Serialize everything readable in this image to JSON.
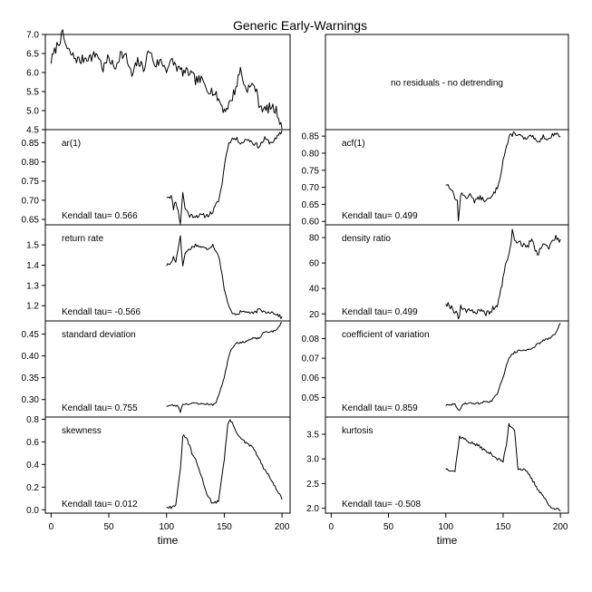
{
  "title": "Generic Early-Warnings",
  "chart_data": [
    {
      "type": "line",
      "id": "data",
      "col": 0,
      "row": 0,
      "label": "",
      "kendall": "",
      "xlim": [
        -5,
        207
      ],
      "ylim": [
        4.5,
        7.0
      ],
      "yticks": [
        "4.5",
        "5.0",
        "5.5",
        "6.0",
        "6.5",
        "7.0"
      ],
      "anchors": [
        [
          0,
          6.3
        ],
        [
          5,
          6.7
        ],
        [
          10,
          7.0
        ],
        [
          14,
          6.6
        ],
        [
          20,
          6.4
        ],
        [
          25,
          6.3
        ],
        [
          30,
          6.4
        ],
        [
          35,
          6.4
        ],
        [
          40,
          6.5
        ],
        [
          45,
          6.1
        ],
        [
          50,
          6.4
        ],
        [
          55,
          6.1
        ],
        [
          60,
          6.5
        ],
        [
          65,
          6.4
        ],
        [
          70,
          5.9
        ],
        [
          75,
          6.3
        ],
        [
          80,
          6.1
        ],
        [
          85,
          6.6
        ],
        [
          90,
          6.2
        ],
        [
          95,
          6.3
        ],
        [
          100,
          6.1
        ],
        [
          105,
          6.3
        ],
        [
          110,
          6.1
        ],
        [
          115,
          6.0
        ],
        [
          120,
          6.0
        ],
        [
          125,
          5.8
        ],
        [
          130,
          5.8
        ],
        [
          135,
          5.6
        ],
        [
          140,
          5.5
        ],
        [
          145,
          5.3
        ],
        [
          150,
          5.0
        ],
        [
          155,
          5.2
        ],
        [
          160,
          5.6
        ],
        [
          164,
          6.1
        ],
        [
          168,
          5.6
        ],
        [
          172,
          5.6
        ],
        [
          176,
          5.7
        ],
        [
          180,
          5.2
        ],
        [
          185,
          5.0
        ],
        [
          190,
          5.1
        ],
        [
          195,
          5.0
        ],
        [
          200,
          4.6
        ]
      ],
      "noise": 0.13,
      "seed": 7,
      "note": ""
    },
    {
      "type": "empty",
      "id": "resid",
      "col": 1,
      "row": 0,
      "note": "no residuals - no detrending"
    },
    {
      "type": "line",
      "id": "ar1",
      "col": 0,
      "row": 1,
      "label": "ar(1)",
      "kendall": "Kendall tau= 0.566",
      "xlim": [
        -5,
        207
      ],
      "ylim": [
        0.636,
        0.884
      ],
      "yticks": [
        "0.65",
        "0.70",
        "0.75",
        "0.80",
        "0.85"
      ],
      "anchors": [
        [
          100,
          0.71
        ],
        [
          104,
          0.71
        ],
        [
          106,
          0.68
        ],
        [
          108,
          0.7
        ],
        [
          110,
          0.67
        ],
        [
          112,
          0.64
        ],
        [
          114,
          0.72
        ],
        [
          116,
          0.68
        ],
        [
          120,
          0.66
        ],
        [
          125,
          0.66
        ],
        [
          130,
          0.66
        ],
        [
          135,
          0.66
        ],
        [
          140,
          0.67
        ],
        [
          145,
          0.7
        ],
        [
          148,
          0.74
        ],
        [
          150,
          0.79
        ],
        [
          153,
          0.84
        ],
        [
          156,
          0.86
        ],
        [
          160,
          0.86
        ],
        [
          165,
          0.85
        ],
        [
          170,
          0.86
        ],
        [
          175,
          0.85
        ],
        [
          180,
          0.84
        ],
        [
          185,
          0.86
        ],
        [
          190,
          0.85
        ],
        [
          195,
          0.86
        ],
        [
          200,
          0.88
        ]
      ],
      "noise": 0.006,
      "seed": 11
    },
    {
      "type": "line",
      "id": "acf1",
      "col": 1,
      "row": 1,
      "label": "acf(1)",
      "kendall": "Kendall tau= 0.499",
      "xlim": [
        -5,
        207
      ],
      "ylim": [
        0.59,
        0.869
      ],
      "yticks": [
        "0.60",
        "0.65",
        "0.70",
        "0.75",
        "0.80",
        "0.85"
      ],
      "anchors": [
        [
          100,
          0.71
        ],
        [
          104,
          0.7
        ],
        [
          108,
          0.67
        ],
        [
          110,
          0.66
        ],
        [
          111,
          0.6
        ],
        [
          113,
          0.68
        ],
        [
          118,
          0.67
        ],
        [
          122,
          0.68
        ],
        [
          125,
          0.66
        ],
        [
          130,
          0.67
        ],
        [
          135,
          0.66
        ],
        [
          140,
          0.67
        ],
        [
          145,
          0.7
        ],
        [
          148,
          0.74
        ],
        [
          150,
          0.78
        ],
        [
          153,
          0.82
        ],
        [
          156,
          0.85
        ],
        [
          160,
          0.86
        ],
        [
          165,
          0.85
        ],
        [
          170,
          0.84
        ],
        [
          175,
          0.85
        ],
        [
          180,
          0.83
        ],
        [
          185,
          0.85
        ],
        [
          190,
          0.84
        ],
        [
          195,
          0.86
        ],
        [
          200,
          0.85
        ]
      ],
      "noise": 0.006,
      "seed": 13
    },
    {
      "type": "line",
      "id": "retrate",
      "col": 0,
      "row": 2,
      "label": "return rate",
      "kendall": "Kendall tau= -0.566",
      "xlim": [
        -5,
        207
      ],
      "ylim": [
        1.125,
        1.599
      ],
      "yticks": [
        "1.2",
        "1.3",
        "1.4",
        "1.5"
      ],
      "anchors": [
        [
          100,
          1.4
        ],
        [
          104,
          1.41
        ],
        [
          106,
          1.44
        ],
        [
          108,
          1.42
        ],
        [
          110,
          1.48
        ],
        [
          112,
          1.55
        ],
        [
          114,
          1.39
        ],
        [
          116,
          1.46
        ],
        [
          120,
          1.48
        ],
        [
          125,
          1.5
        ],
        [
          130,
          1.49
        ],
        [
          135,
          1.48
        ],
        [
          140,
          1.5
        ],
        [
          145,
          1.45
        ],
        [
          148,
          1.36
        ],
        [
          150,
          1.28
        ],
        [
          153,
          1.21
        ],
        [
          156,
          1.17
        ],
        [
          160,
          1.16
        ],
        [
          165,
          1.17
        ],
        [
          170,
          1.17
        ],
        [
          175,
          1.16
        ],
        [
          180,
          1.18
        ],
        [
          185,
          1.17
        ],
        [
          190,
          1.17
        ],
        [
          195,
          1.16
        ],
        [
          200,
          1.14
        ]
      ],
      "noise": 0.008,
      "seed": 17
    },
    {
      "type": "line",
      "id": "density",
      "col": 1,
      "row": 2,
      "label": "density ratio",
      "kendall": "Kendall tau= 0.499",
      "xlim": [
        -5,
        207
      ],
      "ylim": [
        14.5,
        90
      ],
      "yticks": [
        "20",
        "40",
        "60",
        "80"
      ],
      "anchors": [
        [
          100,
          29
        ],
        [
          104,
          26
        ],
        [
          108,
          22
        ],
        [
          110,
          21
        ],
        [
          111,
          15
        ],
        [
          113,
          25
        ],
        [
          118,
          23
        ],
        [
          122,
          24
        ],
        [
          125,
          21
        ],
        [
          130,
          22
        ],
        [
          135,
          20
        ],
        [
          140,
          23
        ],
        [
          145,
          27
        ],
        [
          148,
          38
        ],
        [
          150,
          48
        ],
        [
          153,
          62
        ],
        [
          156,
          70
        ],
        [
          158,
          85
        ],
        [
          160,
          78
        ],
        [
          165,
          76
        ],
        [
          170,
          72
        ],
        [
          175,
          78
        ],
        [
          180,
          67
        ],
        [
          185,
          75
        ],
        [
          190,
          72
        ],
        [
          195,
          80
        ],
        [
          200,
          78
        ]
      ],
      "noise": 2.2,
      "seed": 19
    },
    {
      "type": "line",
      "id": "sd",
      "col": 0,
      "row": 3,
      "label": "standard deviation",
      "kendall": "Kendall tau= 0.755",
      "xlim": [
        -5,
        207
      ],
      "ylim": [
        0.26,
        0.48
      ],
      "yticks": [
        "0.30",
        "0.35",
        "0.40",
        "0.45"
      ],
      "anchors": [
        [
          100,
          0.285
        ],
        [
          105,
          0.287
        ],
        [
          110,
          0.285
        ],
        [
          112,
          0.272
        ],
        [
          114,
          0.29
        ],
        [
          120,
          0.29
        ],
        [
          125,
          0.292
        ],
        [
          130,
          0.29
        ],
        [
          135,
          0.29
        ],
        [
          140,
          0.288
        ],
        [
          143,
          0.293
        ],
        [
          145,
          0.31
        ],
        [
          150,
          0.35
        ],
        [
          153,
          0.39
        ],
        [
          155,
          0.41
        ],
        [
          160,
          0.43
        ],
        [
          165,
          0.43
        ],
        [
          170,
          0.435
        ],
        [
          175,
          0.44
        ],
        [
          180,
          0.44
        ],
        [
          185,
          0.455
        ],
        [
          190,
          0.455
        ],
        [
          195,
          0.458
        ],
        [
          200,
          0.478
        ]
      ],
      "noise": 0.002,
      "seed": 23
    },
    {
      "type": "line",
      "id": "cv",
      "col": 1,
      "row": 3,
      "label": "coefficient of variation",
      "kendall": "Kendall tau= 0.859",
      "xlim": [
        -5,
        207
      ],
      "ylim": [
        0.04,
        0.089
      ],
      "yticks": [
        "0.05",
        "0.06",
        "0.07",
        "0.08"
      ],
      "anchors": [
        [
          100,
          0.046
        ],
        [
          104,
          0.046
        ],
        [
          108,
          0.047
        ],
        [
          110,
          0.044
        ],
        [
          112,
          0.043
        ],
        [
          115,
          0.047
        ],
        [
          120,
          0.047
        ],
        [
          125,
          0.047
        ],
        [
          130,
          0.047
        ],
        [
          135,
          0.048
        ],
        [
          140,
          0.048
        ],
        [
          145,
          0.052
        ],
        [
          150,
          0.06
        ],
        [
          153,
          0.067
        ],
        [
          155,
          0.07
        ],
        [
          160,
          0.073
        ],
        [
          165,
          0.074
        ],
        [
          170,
          0.074
        ],
        [
          175,
          0.075
        ],
        [
          180,
          0.077
        ],
        [
          185,
          0.079
        ],
        [
          190,
          0.08
        ],
        [
          195,
          0.082
        ],
        [
          200,
          0.088
        ]
      ],
      "noise": 0.0005,
      "seed": 29
    },
    {
      "type": "line",
      "id": "skew",
      "col": 0,
      "row": 4,
      "label": "skewness",
      "kendall": "Kendall tau= 0.012",
      "xlim": [
        -5,
        207
      ],
      "ylim": [
        -0.03,
        0.82
      ],
      "yticks": [
        "0.0",
        "0.2",
        "0.4",
        "0.6",
        "0.8"
      ],
      "anchors": [
        [
          100,
          0.03
        ],
        [
          105,
          0.02
        ],
        [
          108,
          0.05
        ],
        [
          112,
          0.35
        ],
        [
          114,
          0.66
        ],
        [
          118,
          0.62
        ],
        [
          122,
          0.5
        ],
        [
          126,
          0.42
        ],
        [
          130,
          0.3
        ],
        [
          135,
          0.14
        ],
        [
          140,
          0.05
        ],
        [
          145,
          0.08
        ],
        [
          150,
          0.45
        ],
        [
          153,
          0.75
        ],
        [
          155,
          0.8
        ],
        [
          160,
          0.7
        ],
        [
          165,
          0.62
        ],
        [
          170,
          0.58
        ],
        [
          175,
          0.55
        ],
        [
          180,
          0.45
        ],
        [
          185,
          0.35
        ],
        [
          190,
          0.28
        ],
        [
          195,
          0.18
        ],
        [
          200,
          0.1
        ]
      ],
      "noise": 0.012,
      "seed": 31
    },
    {
      "type": "line",
      "id": "kurt",
      "col": 1,
      "row": 4,
      "label": "kurtosis",
      "kendall": "Kendall tau= -0.508",
      "xlim": [
        -5,
        207
      ],
      "ylim": [
        1.9,
        3.85
      ],
      "yticks": [
        "2.0",
        "2.5",
        "3.0",
        "3.5"
      ],
      "anchors": [
        [
          100,
          2.8
        ],
        [
          104,
          2.78
        ],
        [
          108,
          2.75
        ],
        [
          112,
          3.45
        ],
        [
          115,
          3.42
        ],
        [
          120,
          3.35
        ],
        [
          125,
          3.3
        ],
        [
          130,
          3.25
        ],
        [
          135,
          3.15
        ],
        [
          140,
          3.1
        ],
        [
          145,
          3.0
        ],
        [
          150,
          2.95
        ],
        [
          153,
          3.3
        ],
        [
          155,
          3.7
        ],
        [
          160,
          3.6
        ],
        [
          163,
          2.8
        ],
        [
          168,
          2.78
        ],
        [
          172,
          2.7
        ],
        [
          176,
          2.55
        ],
        [
          180,
          2.4
        ],
        [
          185,
          2.25
        ],
        [
          190,
          2.05
        ],
        [
          195,
          2.0
        ],
        [
          200,
          1.95
        ]
      ],
      "noise": 0.03,
      "seed": 37
    }
  ],
  "xaxis": {
    "ticks": [
      0,
      50,
      100,
      150,
      200
    ],
    "tick_labels": [
      "0",
      "50",
      "100",
      "150",
      "200"
    ],
    "label": "time"
  }
}
